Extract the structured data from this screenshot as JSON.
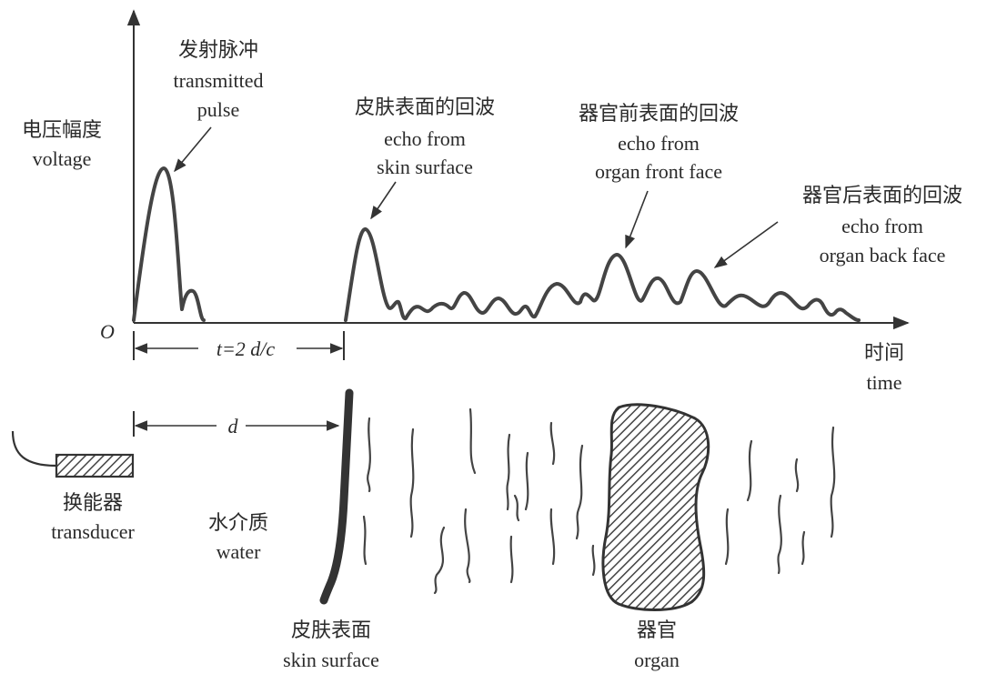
{
  "axis": {
    "y_label_zh": "电压幅度",
    "y_label_en": "voltage",
    "x_label_zh": "时间",
    "x_label_en": "time",
    "origin": "O"
  },
  "labels": {
    "transmitted": {
      "zh": "发射脉冲",
      "en1": "transmitted",
      "en2": "pulse"
    },
    "skin_echo": {
      "zh": "皮肤表面的回波",
      "en1": "echo from",
      "en2": "skin surface"
    },
    "front_echo": {
      "zh": "器官前表面的回波",
      "en1": "echo from",
      "en2": "organ front face"
    },
    "back_echo": {
      "zh": "器官后表面的回波",
      "en1": "echo from",
      "en2": "organ back face"
    }
  },
  "time_marker": "t=2 d/c",
  "distance_marker": "d",
  "transducer": {
    "zh": "换能器",
    "en": "transducer"
  },
  "water": {
    "zh": "水介质",
    "en": "water"
  },
  "skin_surface": {
    "zh": "皮肤表面",
    "en": "skin surface"
  },
  "organ": {
    "zh": "器官",
    "en": "organ"
  },
  "colors": {
    "ink": "#333333",
    "hatch": "#444444",
    "background": "#ffffff"
  }
}
